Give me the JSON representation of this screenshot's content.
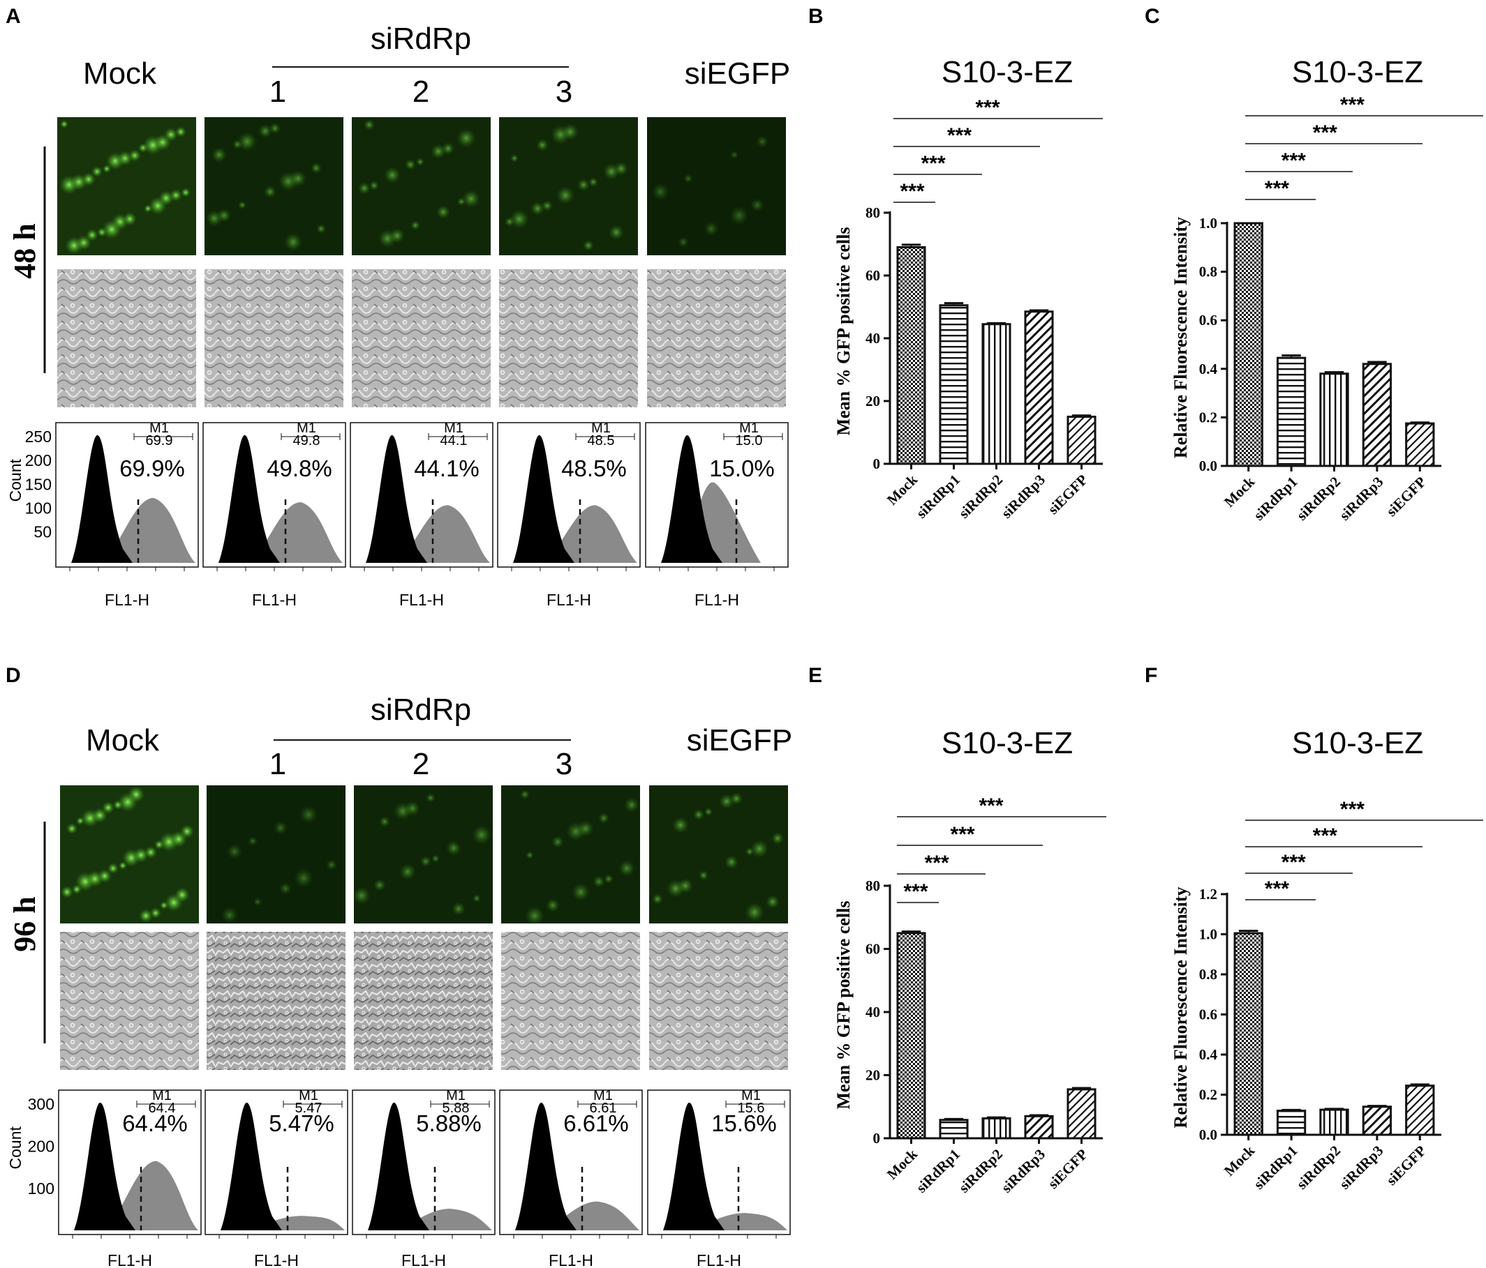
{
  "panels": {
    "A": "A",
    "B": "B",
    "C": "C",
    "D": "D",
    "E": "E",
    "F": "F"
  },
  "micro_rows": [
    {
      "letter": "A",
      "time_label": "48 h",
      "group_label": "siRdRp",
      "col_labels": [
        "Mock",
        "1",
        "2",
        "3",
        "siEGFP"
      ],
      "percents": [
        "69.9%",
        "49.8%",
        "44.1%",
        "48.5%",
        "15.0%"
      ],
      "gate_values": [
        "69.9",
        "49.8",
        "44.1",
        "48.5",
        "15.0"
      ],
      "gate_label": "M1",
      "xlabel": "FL1-H",
      "ylabel": "Count",
      "yticks": [
        "250",
        "200",
        "150",
        "100",
        "50"
      ],
      "fluor_brightness": [
        0.9,
        0.35,
        0.4,
        0.4,
        0.1
      ],
      "gfp_peak_level": [
        0.45,
        0.42,
        0.4,
        0.4,
        0.55
      ]
    },
    {
      "letter": "D",
      "time_label": "96 h",
      "group_label": "siRdRp",
      "col_labels": [
        "Mock",
        "1",
        "2",
        "3",
        "siEGFP"
      ],
      "percents": [
        "64.4%",
        "5.47%",
        "5.88%",
        "6.61%",
        "15.6%"
      ],
      "gate_values": [
        "64.4",
        "5.47",
        "5.88",
        "6.61",
        "15.6"
      ],
      "gate_label": "M1",
      "xlabel": "FL1-H",
      "ylabel": "Count",
      "yticks": [
        "300",
        "200",
        "100"
      ],
      "fluor_brightness": [
        0.95,
        0.15,
        0.3,
        0.3,
        0.4
      ],
      "gfp_peak_level": [
        0.48,
        0.1,
        0.15,
        0.2,
        0.12
      ]
    }
  ],
  "chart_data": [
    {
      "panel": "B",
      "type": "bar",
      "title": "S10-3-EZ",
      "ylabel": "Mean % GFP positive cells",
      "categories": [
        "Mock",
        "siRdRp1",
        "siRdRp2",
        "siRdRp3",
        "siEGFP"
      ],
      "values": [
        69,
        50.5,
        44.5,
        48.5,
        15
      ],
      "errors": [
        0.8,
        0.7,
        0.3,
        0.4,
        0.4
      ],
      "ylim": [
        0,
        80
      ],
      "yticks": [
        0,
        20,
        40,
        60,
        80
      ],
      "significance": [
        {
          "from": 0,
          "to": 1,
          "label": "***"
        },
        {
          "from": 0,
          "to": 2,
          "label": "***"
        },
        {
          "from": 0,
          "to": 3,
          "label": "***"
        },
        {
          "from": 0,
          "to": 4,
          "label": "***"
        }
      ]
    },
    {
      "panel": "C",
      "type": "bar",
      "title": "S10-3-EZ",
      "ylabel": "Relative Fluorescence Intensity",
      "categories": [
        "Mock",
        "siRdRp1",
        "siRdRp2",
        "siRdRp3",
        "siEGFP"
      ],
      "values": [
        1.0,
        0.445,
        0.38,
        0.42,
        0.175
      ],
      "errors": [
        0.0,
        0.01,
        0.006,
        0.008,
        0.004
      ],
      "ylim": [
        0,
        1.0
      ],
      "yticks": [
        0.0,
        0.2,
        0.4,
        0.6,
        0.8,
        1.0
      ],
      "significance": [
        {
          "from": 0,
          "to": 1,
          "label": "***"
        },
        {
          "from": 0,
          "to": 2,
          "label": "***"
        },
        {
          "from": 0,
          "to": 3,
          "label": "***"
        },
        {
          "from": 0,
          "to": 4,
          "label": "***"
        }
      ]
    },
    {
      "panel": "E",
      "type": "bar",
      "title": "S10-3-EZ",
      "ylabel": "Mean % GFP positive cells",
      "categories": [
        "Mock",
        "siRdRp1",
        "siRdRp2",
        "siRdRp3",
        "siEGFP"
      ],
      "values": [
        65,
        5.8,
        6.3,
        7.0,
        15.5
      ],
      "errors": [
        0.5,
        0.3,
        0.3,
        0.3,
        0.4
      ],
      "ylim": [
        0,
        80
      ],
      "yticks": [
        0,
        20,
        40,
        60,
        80
      ],
      "significance": [
        {
          "from": 0,
          "to": 1,
          "label": "***"
        },
        {
          "from": 0,
          "to": 2,
          "label": "***"
        },
        {
          "from": 0,
          "to": 3,
          "label": "***"
        },
        {
          "from": 0,
          "to": 4,
          "label": "***"
        }
      ]
    },
    {
      "panel": "F",
      "type": "bar",
      "title": "S10-3-EZ",
      "ylabel": "Relative Fluorescence Intensity",
      "categories": [
        "Mock",
        "siRdRp1",
        "siRdRp2",
        "siRdRp3",
        "siEGFP"
      ],
      "values": [
        1.005,
        0.12,
        0.125,
        0.14,
        0.245
      ],
      "errors": [
        0.012,
        0.004,
        0.004,
        0.004,
        0.006
      ],
      "ylim": [
        0,
        1.2
      ],
      "yticks": [
        0.0,
        0.2,
        0.4,
        0.6,
        0.8,
        1.0,
        1.2
      ],
      "significance": [
        {
          "from": 0,
          "to": 1,
          "label": "***"
        },
        {
          "from": 0,
          "to": 2,
          "label": "***"
        },
        {
          "from": 0,
          "to": 3,
          "label": "***"
        },
        {
          "from": 0,
          "to": 4,
          "label": "***"
        }
      ]
    }
  ]
}
